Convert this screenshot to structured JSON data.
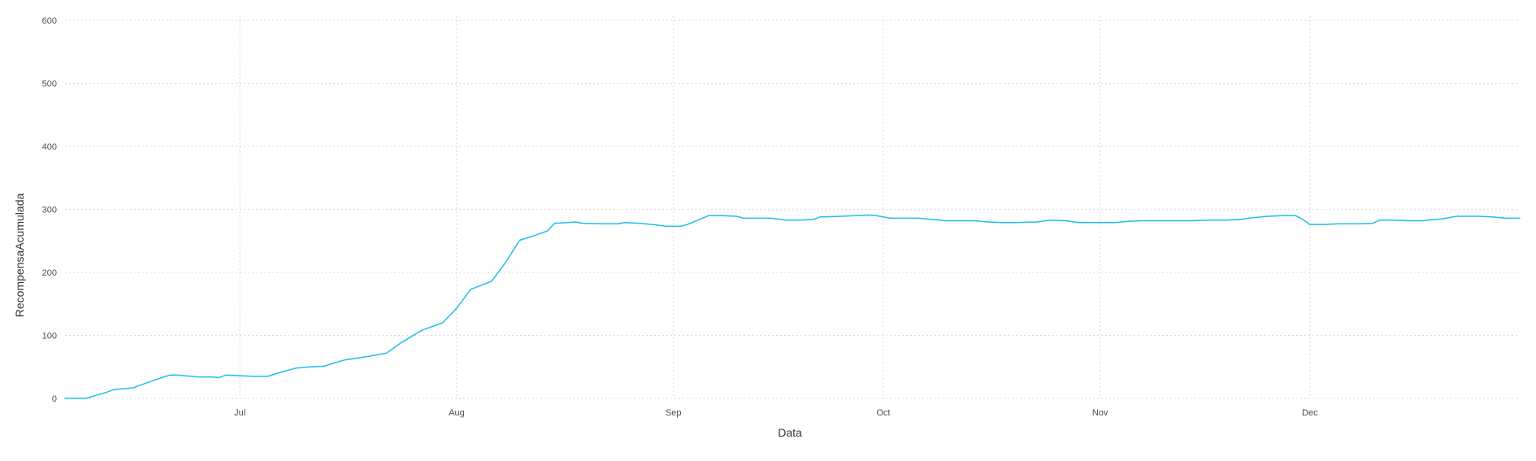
{
  "chart_data": {
    "type": "line",
    "xlabel": "Data",
    "ylabel": "RecompensaAcumulada",
    "x_range": [
      "2023-06-06",
      "2023-12-31"
    ],
    "ylim": [
      0,
      600
    ],
    "yticks": [
      0,
      100,
      200,
      300,
      400,
      500,
      600
    ],
    "xticks": [
      {
        "date": "2023-07-01",
        "label": "Jul"
      },
      {
        "date": "2023-08-01",
        "label": "Aug"
      },
      {
        "date": "2023-09-01",
        "label": "Sep"
      },
      {
        "date": "2023-10-01",
        "label": "Oct"
      },
      {
        "date": "2023-11-01",
        "label": "Nov"
      },
      {
        "date": "2023-12-01",
        "label": "Dec"
      }
    ],
    "grid": true,
    "legend": "none",
    "series": [
      {
        "color": "#1fbfe6",
        "points": [
          [
            "2023-06-06",
            0
          ],
          [
            "2023-06-09",
            0
          ],
          [
            "2023-06-12",
            10
          ],
          [
            "2023-06-13",
            14
          ],
          [
            "2023-06-16",
            17
          ],
          [
            "2023-06-16",
            18
          ],
          [
            "2023-06-19",
            30
          ],
          [
            "2023-06-21",
            37
          ],
          [
            "2023-06-22",
            37
          ],
          [
            "2023-06-25",
            34
          ],
          [
            "2023-06-27",
            34
          ],
          [
            "2023-06-28",
            33
          ],
          [
            "2023-06-29",
            37
          ],
          [
            "2023-07-01",
            36
          ],
          [
            "2023-07-03",
            35
          ],
          [
            "2023-07-05",
            35
          ],
          [
            "2023-07-07",
            42
          ],
          [
            "2023-07-09",
            48
          ],
          [
            "2023-07-11",
            50
          ],
          [
            "2023-07-13",
            51
          ],
          [
            "2023-07-15",
            58
          ],
          [
            "2023-07-16",
            61
          ],
          [
            "2023-07-19",
            66
          ],
          [
            "2023-07-22",
            72
          ],
          [
            "2023-07-24",
            88
          ],
          [
            "2023-07-27",
            108
          ],
          [
            "2023-07-30",
            120
          ],
          [
            "2023-08-01",
            143
          ],
          [
            "2023-08-03",
            173
          ],
          [
            "2023-08-06",
            186
          ],
          [
            "2023-08-08",
            216
          ],
          [
            "2023-08-10",
            251
          ],
          [
            "2023-08-12",
            258
          ],
          [
            "2023-08-14",
            266
          ],
          [
            "2023-08-15",
            278
          ],
          [
            "2023-08-17",
            279
          ],
          [
            "2023-08-18",
            280
          ],
          [
            "2023-08-19",
            278
          ],
          [
            "2023-08-22",
            277
          ],
          [
            "2023-08-24",
            277
          ],
          [
            "2023-08-25",
            279
          ],
          [
            "2023-08-27",
            278
          ],
          [
            "2023-08-29",
            276
          ],
          [
            "2023-08-31",
            273
          ],
          [
            "2023-09-02",
            273
          ],
          [
            "2023-09-03",
            276
          ],
          [
            "2023-09-06",
            290
          ],
          [
            "2023-09-08",
            290
          ],
          [
            "2023-09-10",
            289
          ],
          [
            "2023-09-11",
            286
          ],
          [
            "2023-09-13",
            286
          ],
          [
            "2023-09-15",
            286
          ],
          [
            "2023-09-17",
            283
          ],
          [
            "2023-09-19",
            283
          ],
          [
            "2023-09-21",
            284
          ],
          [
            "2023-09-22",
            288
          ],
          [
            "2023-09-25",
            289
          ],
          [
            "2023-09-27",
            290
          ],
          [
            "2023-09-29",
            291
          ],
          [
            "2023-09-30",
            290
          ],
          [
            "2023-10-02",
            286
          ],
          [
            "2023-10-04",
            286
          ],
          [
            "2023-10-06",
            286
          ],
          [
            "2023-10-08",
            284
          ],
          [
            "2023-10-10",
            282
          ],
          [
            "2023-10-12",
            282
          ],
          [
            "2023-10-14",
            282
          ],
          [
            "2023-10-16",
            280
          ],
          [
            "2023-10-18",
            279
          ],
          [
            "2023-10-20",
            279
          ],
          [
            "2023-10-23",
            280
          ],
          [
            "2023-10-25",
            283
          ],
          [
            "2023-10-27",
            282
          ],
          [
            "2023-10-29",
            279
          ],
          [
            "2023-10-31",
            279
          ],
          [
            "2023-11-03",
            279
          ],
          [
            "2023-11-05",
            281
          ],
          [
            "2023-11-07",
            282
          ],
          [
            "2023-11-10",
            282
          ],
          [
            "2023-11-12",
            282
          ],
          [
            "2023-11-14",
            282
          ],
          [
            "2023-11-17",
            283
          ],
          [
            "2023-11-19",
            283
          ],
          [
            "2023-11-21",
            284
          ],
          [
            "2023-11-23",
            287
          ],
          [
            "2023-11-25",
            289
          ],
          [
            "2023-11-27",
            290
          ],
          [
            "2023-11-29",
            290
          ],
          [
            "2023-11-30",
            284
          ],
          [
            "2023-12-01",
            276
          ],
          [
            "2023-12-03",
            276
          ],
          [
            "2023-12-05",
            277
          ],
          [
            "2023-12-08",
            277
          ],
          [
            "2023-12-10",
            278
          ],
          [
            "2023-12-11",
            283
          ],
          [
            "2023-12-13",
            283
          ],
          [
            "2023-12-15",
            282
          ],
          [
            "2023-12-17",
            282
          ],
          [
            "2023-12-19",
            284
          ],
          [
            "2023-12-20",
            285
          ],
          [
            "2023-12-22",
            289
          ],
          [
            "2023-12-25",
            289
          ],
          [
            "2023-12-27",
            288
          ],
          [
            "2023-12-29",
            286
          ],
          [
            "2023-12-30",
            286
          ],
          [
            "2023-12-31",
            286
          ]
        ]
      }
    ]
  }
}
